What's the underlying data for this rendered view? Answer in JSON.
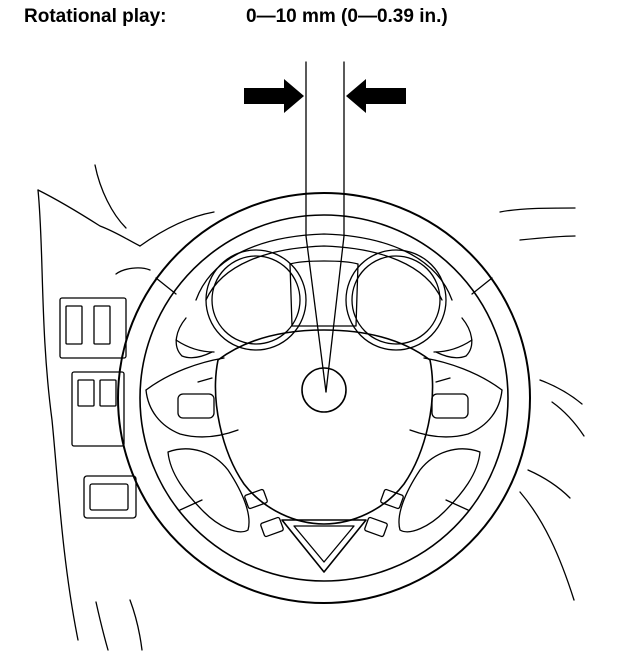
{
  "spec": {
    "label": "Rotational play:",
    "value": "0—10 mm (0—0.39 in.)"
  },
  "colors": {
    "line": "#000000",
    "background": "#ffffff"
  }
}
